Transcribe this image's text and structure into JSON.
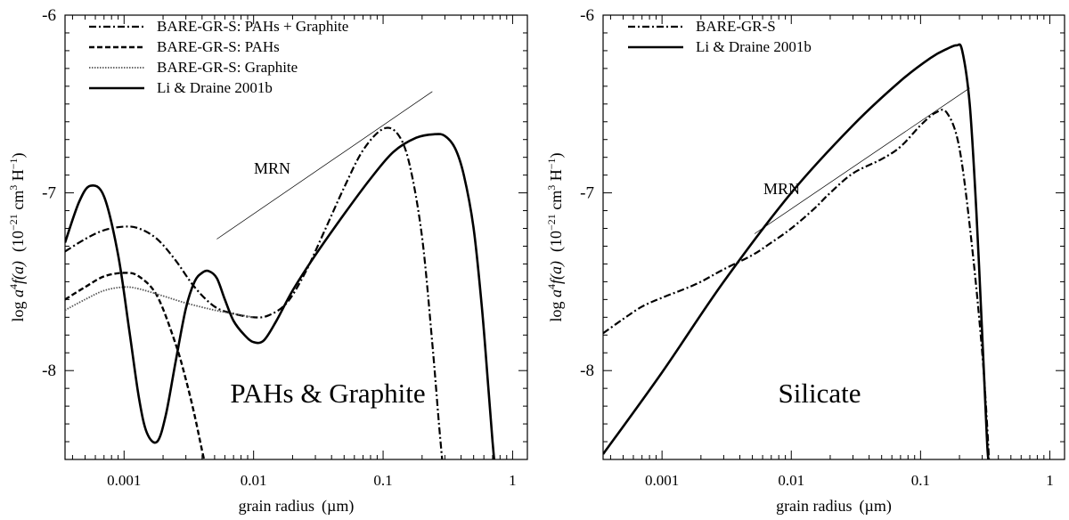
{
  "chart_data": [
    {
      "type": "line",
      "xlabel": "grain radius",
      "xunit": "(µm)",
      "ylabel_pre": "log ",
      "ylabel_a": "a",
      "ylabel_sup4": "4",
      "ylabel_f": "f(a)",
      "ylabel_units_open": "(10",
      "ylabel_sup_m21": "−21",
      "ylabel_cm": " cm",
      "ylabel_sup3": "3",
      "ylabel_H": " H",
      "ylabel_sup_m1": "−1",
      "ylabel_units_close": ")",
      "x_scale": "log",
      "xlim": [
        0.00035,
        1.3
      ],
      "ylim": [
        -8.5,
        -6.0
      ],
      "x_ticks": [
        0.001,
        0.01,
        0.1,
        1
      ],
      "x_tick_labels": [
        "0.001",
        "0.01",
        "0.1",
        "1"
      ],
      "y_ticks": [
        -8,
        -7,
        -6
      ],
      "y_tick_labels": [
        "-8",
        "-7",
        "-6"
      ],
      "annotation": "PAHs & Graphite",
      "mrn_label": "MRN",
      "legend_position": "top-left",
      "series": [
        {
          "name": "BARE-GR-S:  PAHs + Graphite",
          "style": "dash-dot",
          "x": [
            0.00035,
            0.0005,
            0.0007,
            0.001,
            0.0013,
            0.0018,
            0.0025,
            0.0035,
            0.005,
            0.007,
            0.01,
            0.013,
            0.018,
            0.025,
            0.035,
            0.05,
            0.07,
            0.1,
            0.13,
            0.16,
            0.2,
            0.24,
            0.27,
            0.29
          ],
          "y": [
            -7.33,
            -7.26,
            -7.21,
            -7.19,
            -7.2,
            -7.26,
            -7.38,
            -7.53,
            -7.64,
            -7.68,
            -7.7,
            -7.69,
            -7.62,
            -7.45,
            -7.22,
            -6.97,
            -6.76,
            -6.64,
            -6.67,
            -6.84,
            -7.25,
            -7.85,
            -8.3,
            -8.55
          ]
        },
        {
          "name": "BARE-GR-S:  PAHs",
          "style": "dashed",
          "x": [
            0.00035,
            0.0005,
            0.0007,
            0.001,
            0.0013,
            0.0018,
            0.0025,
            0.003,
            0.0035,
            0.004,
            0.0043
          ],
          "y": [
            -7.6,
            -7.53,
            -7.47,
            -7.45,
            -7.47,
            -7.58,
            -7.85,
            -8.05,
            -8.25,
            -8.45,
            -8.55
          ]
        },
        {
          "name": "BARE-GR-S:  Graphite",
          "style": "dotted",
          "x": [
            0.00035,
            0.0005,
            0.0007,
            0.001,
            0.0013,
            0.002,
            0.003,
            0.005,
            0.007,
            0.01
          ],
          "y": [
            -7.66,
            -7.6,
            -7.55,
            -7.53,
            -7.54,
            -7.58,
            -7.62,
            -7.66,
            -7.68,
            -7.7
          ]
        },
        {
          "name": "Li & Draine 2001b",
          "style": "solid",
          "x": [
            0.00035,
            0.00045,
            0.00055,
            0.0007,
            0.0009,
            0.0011,
            0.0013,
            0.0015,
            0.0018,
            0.0021,
            0.0025,
            0.003,
            0.0035,
            0.004,
            0.0045,
            0.0052,
            0.006,
            0.007,
            0.0085,
            0.01,
            0.012,
            0.015,
            0.02,
            0.03,
            0.05,
            0.08,
            0.12,
            0.18,
            0.25,
            0.3,
            0.36,
            0.42,
            0.5,
            0.58,
            0.65,
            0.7,
            0.73
          ],
          "y": [
            -7.28,
            -7.05,
            -6.96,
            -7.02,
            -7.35,
            -7.78,
            -8.15,
            -8.35,
            -8.4,
            -8.25,
            -7.95,
            -7.65,
            -7.5,
            -7.45,
            -7.44,
            -7.48,
            -7.6,
            -7.72,
            -7.8,
            -7.84,
            -7.83,
            -7.72,
            -7.55,
            -7.35,
            -7.12,
            -6.92,
            -6.77,
            -6.69,
            -6.67,
            -6.68,
            -6.75,
            -6.9,
            -7.2,
            -7.65,
            -8.1,
            -8.4,
            -8.55
          ]
        }
      ],
      "mrn_line": {
        "x": [
          0.0052,
          0.24
        ],
        "y": [
          -7.26,
          -6.43
        ]
      }
    },
    {
      "type": "line",
      "xlabel": "grain radius",
      "xunit": "(µm)",
      "ylabel_pre": "log ",
      "ylabel_a": "a",
      "ylabel_sup4": "4",
      "ylabel_f": "f(a)",
      "ylabel_units_open": "(10",
      "ylabel_sup_m21": "−21",
      "ylabel_cm": " cm",
      "ylabel_sup3": "3",
      "ylabel_H": " H",
      "ylabel_sup_m1": "−1",
      "ylabel_units_close": ")",
      "x_scale": "log",
      "xlim": [
        0.00035,
        1.3
      ],
      "ylim": [
        -8.5,
        -6.0
      ],
      "x_ticks": [
        0.001,
        0.01,
        0.1,
        1
      ],
      "x_tick_labels": [
        "0.001",
        "0.01",
        "0.1",
        "1"
      ],
      "y_ticks": [
        -8,
        -7,
        -6
      ],
      "y_tick_labels": [
        "-8",
        "-7",
        "-6"
      ],
      "annotation": "Silicate",
      "mrn_label": "MRN",
      "legend_position": "top-left",
      "series": [
        {
          "name": "BARE-GR-S",
          "style": "dash-dot",
          "x": [
            0.00035,
            0.0005,
            0.0007,
            0.001,
            0.0015,
            0.002,
            0.003,
            0.005,
            0.007,
            0.01,
            0.015,
            0.02,
            0.03,
            0.05,
            0.07,
            0.1,
            0.13,
            0.16,
            0.2,
            0.25,
            0.3,
            0.33,
            0.34
          ],
          "y": [
            -7.79,
            -7.71,
            -7.64,
            -7.59,
            -7.54,
            -7.5,
            -7.43,
            -7.35,
            -7.28,
            -7.2,
            -7.09,
            -7.0,
            -6.89,
            -6.81,
            -6.74,
            -6.62,
            -6.55,
            -6.55,
            -6.75,
            -7.3,
            -7.9,
            -8.35,
            -8.55
          ]
        },
        {
          "name": "Li & Draine 2001b",
          "style": "solid",
          "x": [
            0.00035,
            0.001,
            0.003,
            0.01,
            0.03,
            0.07,
            0.12,
            0.16,
            0.19,
            0.21,
            0.24,
            0.27,
            0.3,
            0.32,
            0.33,
            0.34
          ],
          "y": [
            -8.47,
            -8.01,
            -7.5,
            -7.0,
            -6.62,
            -6.37,
            -6.24,
            -6.19,
            -6.17,
            -6.2,
            -6.5,
            -7.1,
            -7.8,
            -8.25,
            -8.45,
            -8.55
          ]
        }
      ],
      "mrn_line": {
        "x": [
          0.0052,
          0.24
        ],
        "y": [
          -7.23,
          -6.41
        ]
      }
    }
  ]
}
